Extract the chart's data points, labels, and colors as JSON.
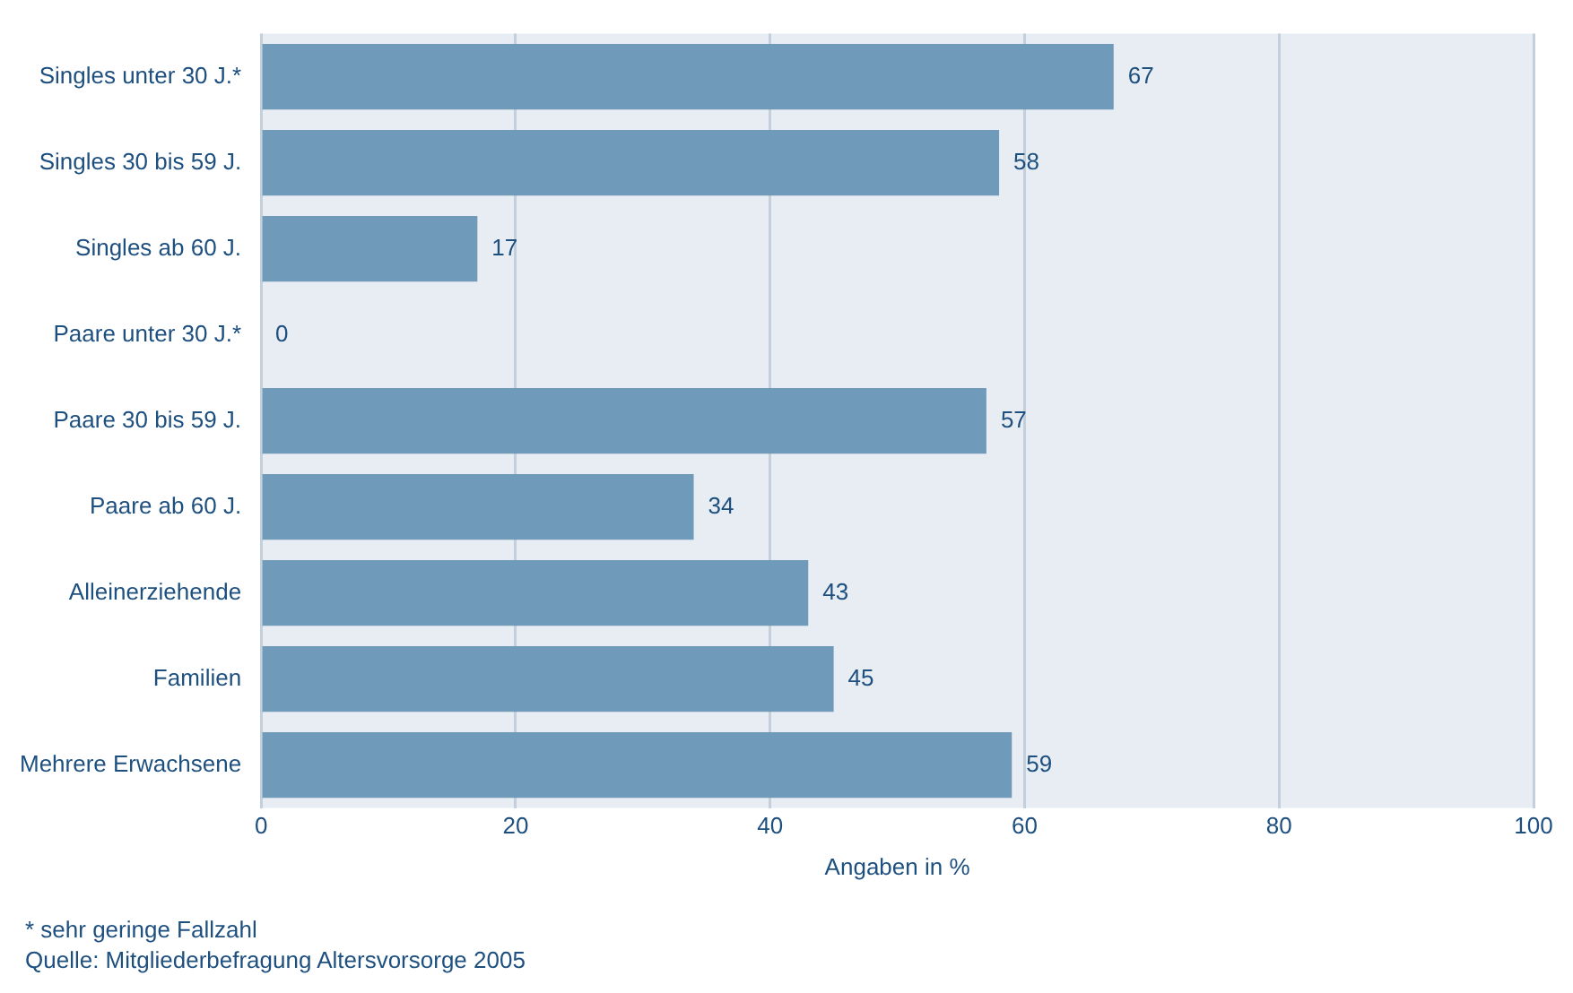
{
  "chart_data": {
    "type": "bar",
    "orientation": "horizontal",
    "xlabel": "Angaben in %",
    "categories": [
      "Singles unter 30 J.*",
      "Singles 30 bis 59 J.",
      "Singles ab 60 J.",
      "Paare unter 30 J.*",
      "Paare 30 bis 59 J.",
      "Paare ab 60 J.",
      "Alleinerziehende",
      "Familien",
      "Mehrere Erwachsene"
    ],
    "values": [
      67,
      58,
      17,
      0,
      57,
      34,
      43,
      45,
      59
    ],
    "color": "#6f9aba",
    "xlim": [
      0,
      100
    ],
    "xticks": [
      0,
      20,
      40,
      60,
      80,
      100
    ],
    "grid": "x",
    "data_labels": true,
    "annotations": [
      "* sehr geringe Fallzahl",
      "Quelle: Mitgliederbefragung Altersvorsorge 2005"
    ]
  }
}
